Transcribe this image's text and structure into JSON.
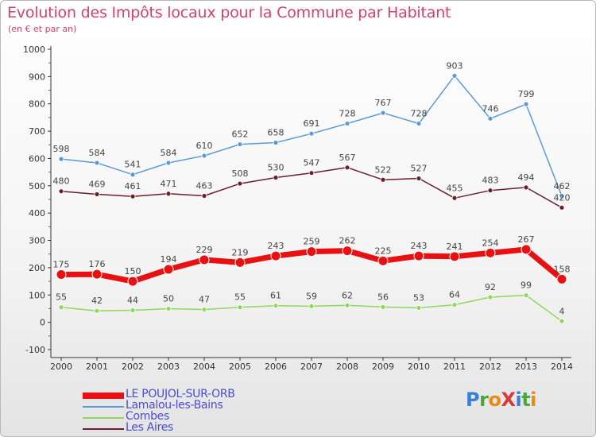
{
  "title": "Evolution des Impôts locaux pour la Commune par Habitant",
  "subtitle": "(en € et par an)",
  "logo": {
    "text": "ProXiti",
    "letters": [
      {
        "ch": "P",
        "color": "#3a7fd6"
      },
      {
        "ch": "r",
        "color": "#4aa83a"
      },
      {
        "ch": "o",
        "color": "#e88a1a"
      },
      {
        "ch": "X",
        "color": "#d83a3a"
      },
      {
        "ch": "i",
        "color": "#3a7fd6"
      },
      {
        "ch": "t",
        "color": "#4aa83a"
      },
      {
        "ch": "i",
        "color": "#e88a1a"
      }
    ]
  },
  "chart_data": {
    "type": "line",
    "title": "Evolution des Impôts locaux pour la Commune par Habitant",
    "subtitle": "(en € et par an)",
    "xlabel": "",
    "ylabel": "",
    "x": [
      "2000",
      "2001",
      "2002",
      "2003",
      "2004",
      "2005",
      "2006",
      "2007",
      "2008",
      "2009",
      "2010",
      "2011",
      "2012",
      "2013",
      "2014"
    ],
    "ylim": [
      -100,
      1000
    ],
    "yticks": [
      "-100",
      "0",
      "100",
      "200",
      "300",
      "400",
      "500",
      "600",
      "700",
      "800",
      "900",
      "1000"
    ],
    "grid": false,
    "legend_position": "bottom-left",
    "series": [
      {
        "name": "Lamalou-les-Bains",
        "color": "#5b9bd5",
        "values": [
          598,
          584,
          541,
          584,
          610,
          652,
          658,
          691,
          728,
          767,
          728,
          903,
          746,
          799,
          462
        ],
        "labels": [
          "598",
          "584",
          "541",
          "584",
          "610",
          "652",
          "658",
          "691",
          "728",
          "767",
          "728",
          "903",
          "746",
          "799",
          "462"
        ]
      },
      {
        "name": "Les Aires",
        "color": "#6b1f2a",
        "values": [
          480,
          469,
          461,
          471,
          463,
          508,
          530,
          547,
          567,
          522,
          527,
          455,
          483,
          494,
          420
        ],
        "labels": [
          "480",
          "469",
          "461",
          "471",
          "463",
          "508",
          "530",
          "547",
          "567",
          "522",
          "527",
          "455",
          "483",
          "494",
          "420"
        ]
      },
      {
        "name": "LE POUJOL-SUR-ORB",
        "color": "#e81010",
        "values": [
          175,
          176,
          150,
          194,
          229,
          219,
          243,
          259,
          262,
          225,
          243,
          241,
          254,
          267,
          158
        ],
        "labels": [
          "175",
          "176",
          "150",
          "194",
          "229",
          "219",
          "243",
          "259",
          "262",
          "225",
          "243",
          "241",
          "254",
          "267",
          "158"
        ]
      },
      {
        "name": "Combes",
        "color": "#8ed85a",
        "values": [
          55,
          42,
          44,
          50,
          47,
          55,
          61,
          59,
          62,
          56,
          53,
          64,
          92,
          99,
          4
        ],
        "labels": [
          "55",
          "42",
          "44",
          "50",
          "47",
          "55",
          "61",
          "59",
          "62",
          "56",
          "53",
          "64",
          "92",
          "99",
          "4"
        ]
      }
    ],
    "legend": [
      {
        "name": "LE POUJOL-SUR-ORB",
        "color": "#e81010"
      },
      {
        "name": "Lamalou-les-Bains",
        "color": "#5b9bd5"
      },
      {
        "name": "Combes",
        "color": "#8ed85a"
      },
      {
        "name": "Les Aires",
        "color": "#6b1f2a"
      }
    ]
  }
}
